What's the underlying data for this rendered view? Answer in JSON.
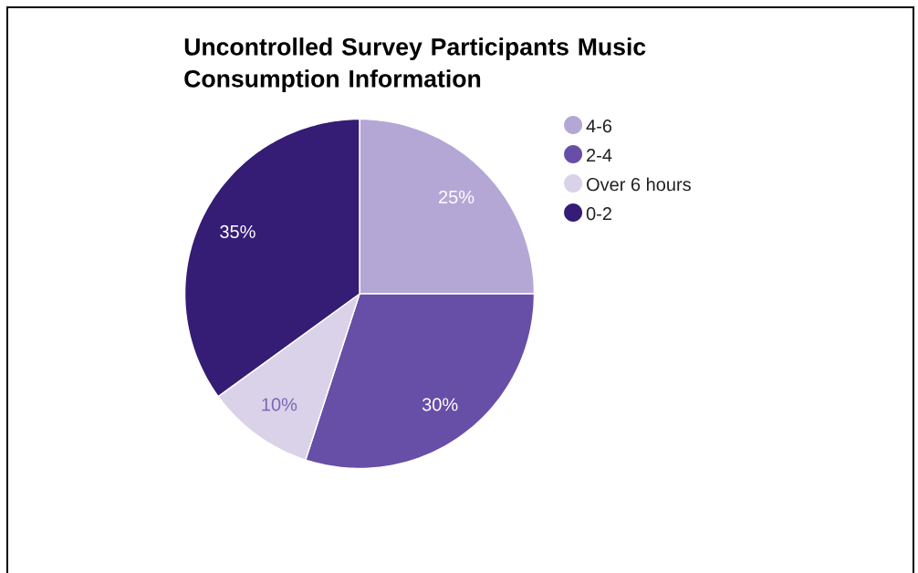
{
  "chart_data": {
    "type": "pie",
    "title": "Uncontrolled Survey Participants Music Consumption Information",
    "categories": [
      "4-6",
      "2-4",
      "Over 6 hours",
      "0-2"
    ],
    "values": [
      25,
      30,
      10,
      35
    ],
    "colors": [
      "#b4a7d6",
      "#674ea7",
      "#d9d2e9",
      "#351c75"
    ],
    "value_labels": [
      "25%",
      "30%",
      "10%",
      "35%"
    ],
    "legend": "top right"
  }
}
